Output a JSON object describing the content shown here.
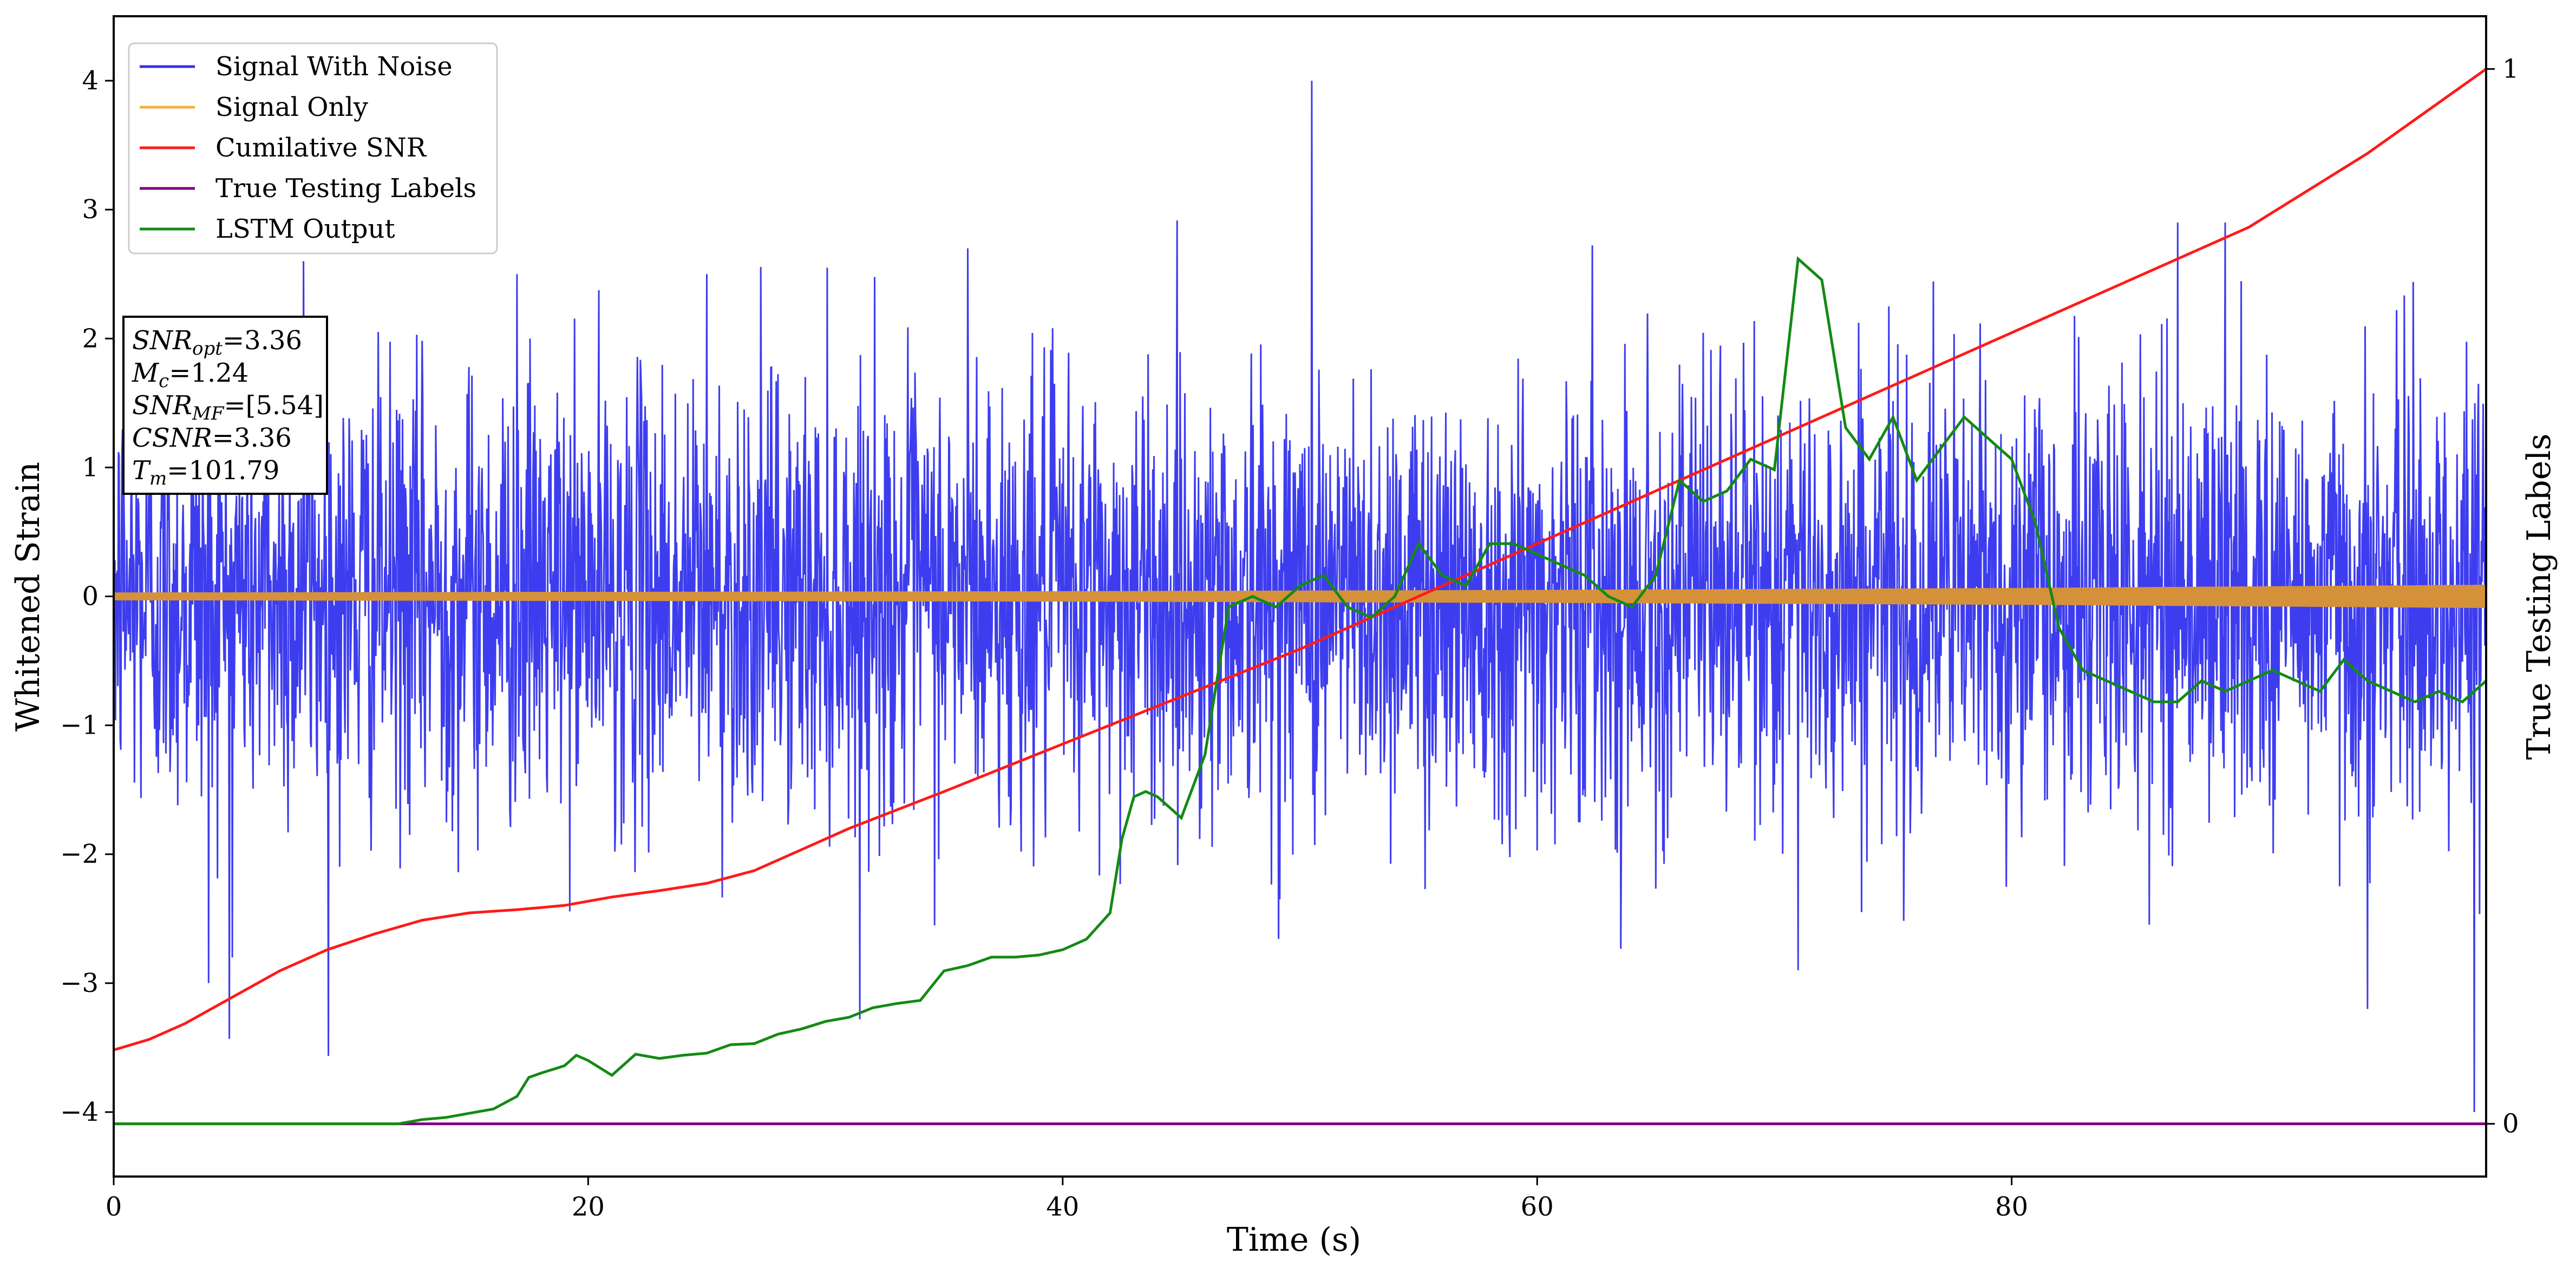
{
  "chart_data": {
    "type": "line",
    "xlabel": "Time (s)",
    "ylabel": "Whitened Strain",
    "y2label": "True Testing Labels",
    "xlim": [
      0,
      100
    ],
    "ylim": [
      -4.5,
      4.5
    ],
    "y2lim": [
      -0.05,
      1.05
    ],
    "x_ticks": [
      0,
      20,
      40,
      60,
      80
    ],
    "y_ticks": [
      -4,
      -3,
      -2,
      -1,
      0,
      1,
      2,
      3,
      4
    ],
    "y2_ticks": [
      0,
      1
    ],
    "grid": false,
    "legend_placement": "top-left",
    "legend": [
      {
        "label": "Signal With Noise",
        "color": "#3333ee"
      },
      {
        "label": "Signal Only",
        "color": "#f5b041"
      },
      {
        "label": "Cumilative SNR",
        "color": "#ff1a1a"
      },
      {
        "label": "True Testing Labels",
        "color": "#800080"
      },
      {
        "label": "LSTM Output",
        "color": "#138a13"
      }
    ],
    "annotation": [
      {
        "name": "SNR",
        "sub": "opt",
        "value": "=3.36"
      },
      {
        "name": "M",
        "sub": "c",
        "value": "=1.24"
      },
      {
        "name": "SNR",
        "sub": "MF",
        "value": "=[5.54]"
      },
      {
        "name": "CSNR",
        "sub": "",
        "value": "=3.36"
      },
      {
        "name": "T",
        "sub": "m",
        "value": "=101.79"
      }
    ],
    "series": [
      {
        "name": "Signal With Noise",
        "axis": "left",
        "color": "#3333ee",
        "description": "whitened noisy strain",
        "x_range": [
          0,
          100
        ],
        "typical_range": [
          -1.7,
          1.7
        ],
        "spikes": [
          [
            4,
            -3.0
          ],
          [
            5,
            -2.8
          ],
          [
            8,
            2.6
          ],
          [
            17,
            2.5
          ],
          [
            25,
            2.5
          ],
          [
            36,
            2.7
          ],
          [
            50.5,
            4.0
          ],
          [
            71,
            -2.9
          ],
          [
            87,
            2.9
          ],
          [
            89,
            2.9
          ],
          [
            95,
            -3.2
          ],
          [
            99.5,
            -4.0
          ]
        ]
      },
      {
        "name": "Signal Only",
        "axis": "left",
        "color": "#f5b041",
        "x": [
          0,
          20,
          40,
          60,
          80,
          100
        ],
        "y": [
          0,
          0,
          0,
          0,
          0,
          0
        ],
        "amplitude": [
          0.03,
          0.035,
          0.04,
          0.05,
          0.065,
          0.09
        ]
      },
      {
        "name": "Cumilative SNR",
        "axis": "right",
        "color": "#ff1a1a",
        "x": [
          0,
          1.5,
          3,
          5,
          7,
          9,
          11,
          13,
          15,
          17,
          19,
          21,
          23,
          25,
          27,
          29,
          31,
          35,
          40,
          45,
          50,
          55,
          60,
          65,
          70,
          75,
          80,
          85,
          90,
          95,
          100
        ],
        "y": [
          0.07,
          0.08,
          0.095,
          0.12,
          0.145,
          0.165,
          0.18,
          0.193,
          0.2,
          0.203,
          0.207,
          0.215,
          0.221,
          0.228,
          0.24,
          0.26,
          0.28,
          0.315,
          0.36,
          0.405,
          0.45,
          0.5,
          0.55,
          0.6,
          0.65,
          0.7,
          0.75,
          0.8,
          0.85,
          0.92,
          1.0
        ]
      },
      {
        "name": "True Testing Labels",
        "axis": "right",
        "color": "#800080",
        "x": [
          0,
          100
        ],
        "y": [
          0,
          0
        ]
      },
      {
        "name": "LSTM Output",
        "axis": "right",
        "color": "#138a13",
        "x": [
          0,
          10,
          12,
          13,
          14,
          15,
          16,
          17,
          17.5,
          18,
          19,
          19.5,
          20,
          21,
          22,
          23,
          24,
          25,
          26,
          27,
          28,
          29,
          30,
          31,
          32,
          33,
          34,
          35,
          36,
          37,
          38,
          39,
          40,
          41,
          42,
          42.5,
          43,
          43.5,
          44,
          45,
          46,
          47,
          48,
          49,
          50,
          51,
          52,
          53,
          54,
          55,
          56,
          57,
          58,
          59,
          60,
          61,
          62,
          63,
          64,
          65,
          66,
          67,
          68,
          69,
          70,
          71,
          72,
          73,
          74,
          75,
          76,
          77,
          78,
          79,
          80,
          81,
          82,
          83,
          84,
          85,
          86,
          87,
          88,
          89,
          90,
          91,
          92,
          93,
          94,
          95,
          96,
          97,
          98,
          99,
          100
        ],
        "y": [
          0,
          0,
          0.0,
          0.004,
          0.006,
          0.01,
          0.014,
          0.026,
          0.044,
          0.048,
          0.055,
          0.065,
          0.06,
          0.046,
          0.066,
          0.062,
          0.065,
          0.067,
          0.075,
          0.076,
          0.085,
          0.09,
          0.097,
          0.101,
          0.11,
          0.114,
          0.117,
          0.145,
          0.15,
          0.158,
          0.158,
          0.16,
          0.165,
          0.175,
          0.2,
          0.27,
          0.31,
          0.315,
          0.31,
          0.29,
          0.35,
          0.49,
          0.5,
          0.49,
          0.51,
          0.52,
          0.49,
          0.48,
          0.5,
          0.55,
          0.52,
          0.51,
          0.55,
          0.55,
          0.54,
          0.53,
          0.52,
          0.5,
          0.49,
          0.52,
          0.61,
          0.59,
          0.6,
          0.63,
          0.62,
          0.82,
          0.8,
          0.66,
          0.63,
          0.67,
          0.61,
          0.64,
          0.67,
          0.65,
          0.63,
          0.57,
          0.47,
          0.43,
          0.42,
          0.41,
          0.4,
          0.4,
          0.42,
          0.41,
          0.42,
          0.43,
          0.42,
          0.41,
          0.44,
          0.42,
          0.41,
          0.4,
          0.41,
          0.4,
          0.42
        ]
      }
    ]
  }
}
